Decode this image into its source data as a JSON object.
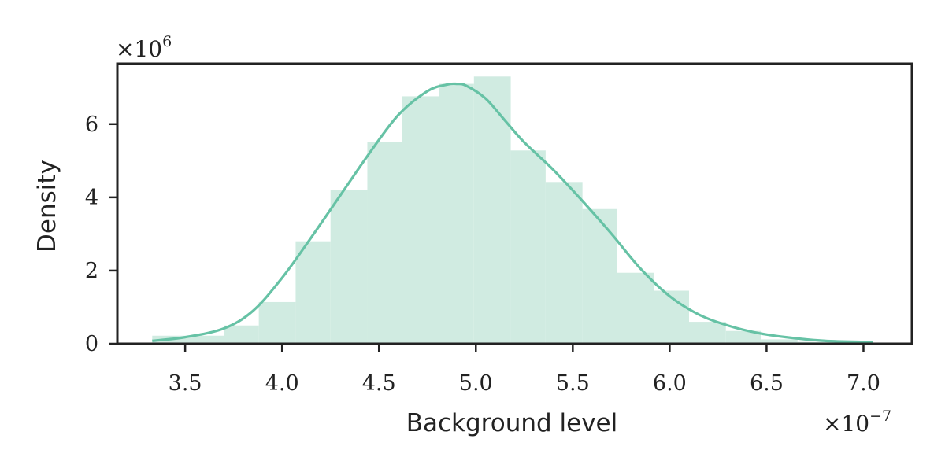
{
  "chart_data": {
    "type": "bar",
    "title": "",
    "xlabel": "Background level",
    "ylabel": "Density",
    "x_multiplier": {
      "base": "×10",
      "exponent": "−7"
    },
    "y_multiplier": {
      "base": "×10",
      "exponent": "6"
    },
    "xlim": [
      3.15,
      7.25
    ],
    "ylim": [
      0,
      7.65
    ],
    "xticks": [
      3.5,
      4.0,
      4.5,
      5.0,
      5.5,
      6.0,
      6.5,
      7.0
    ],
    "xtick_labels": [
      "3.5",
      "4.0",
      "4.5",
      "5.0",
      "5.5",
      "6.0",
      "6.5",
      "7.0"
    ],
    "yticks": [
      0,
      2,
      4,
      6
    ],
    "ytick_labels": [
      "0",
      "2",
      "4",
      "6"
    ],
    "grid": false,
    "colors": {
      "line": "#66c2a5",
      "bars": "#d0ebe1",
      "axes": "#222222"
    },
    "histogram": {
      "bin_edges": [
        3.33,
        3.7,
        3.88,
        4.07,
        4.25,
        4.44,
        4.62,
        4.81,
        4.99,
        5.18,
        5.36,
        5.55,
        5.73,
        5.92,
        6.1,
        6.29,
        6.47,
        6.66,
        7.05
      ],
      "densities": [
        0.22,
        0.5,
        1.14,
        2.8,
        4.2,
        5.52,
        6.76,
        7.1,
        7.3,
        5.28,
        4.42,
        3.68,
        1.94,
        1.45,
        0.6,
        0.35,
        0.12,
        0.05
      ]
    },
    "kde": {
      "x": [
        3.33,
        3.5,
        3.7,
        3.85,
        4.0,
        4.15,
        4.3,
        4.45,
        4.6,
        4.75,
        4.85,
        4.9,
        4.95,
        5.05,
        5.15,
        5.25,
        5.4,
        5.55,
        5.7,
        5.85,
        6.0,
        6.15,
        6.3,
        6.45,
        6.6,
        6.8,
        7.0,
        7.05
      ],
      "y": [
        0.08,
        0.18,
        0.42,
        0.9,
        1.8,
        2.9,
        4.05,
        5.2,
        6.25,
        6.9,
        7.08,
        7.1,
        7.05,
        6.7,
        6.1,
        5.5,
        4.75,
        3.9,
        3.0,
        2.05,
        1.3,
        0.8,
        0.5,
        0.3,
        0.18,
        0.08,
        0.05,
        0.05
      ]
    }
  }
}
